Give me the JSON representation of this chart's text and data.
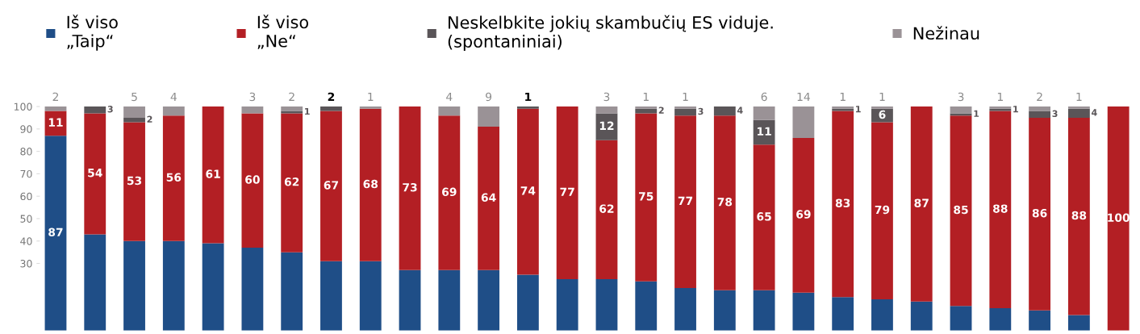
{
  "chart_data": {
    "type": "bar",
    "stacked": true,
    "categories": [
      null,
      null,
      null,
      null,
      null,
      null,
      null,
      null,
      null,
      null,
      null,
      null,
      null,
      null,
      null,
      null,
      null,
      null,
      null,
      null,
      null,
      null,
      null,
      null,
      null,
      null,
      null,
      null
    ],
    "series": [
      {
        "name": "Iš viso\n„Taip“",
        "color": "#1f4e87",
        "values": [
          87,
          43,
          40,
          40,
          39,
          37,
          35,
          31,
          31,
          27,
          27,
          27,
          25,
          23,
          23,
          22,
          19,
          18,
          18,
          17,
          15,
          14,
          13,
          11,
          10,
          9,
          7,
          0
        ],
        "value_labels": [
          "87",
          null,
          null,
          null,
          null,
          null,
          null,
          null,
          null,
          null,
          null,
          null,
          null,
          null,
          null,
          null,
          null,
          null,
          null,
          null,
          null,
          null,
          null,
          null,
          null,
          null,
          null,
          null
        ]
      },
      {
        "name": "Iš viso\n„Ne“",
        "color": "#b31f24",
        "values": [
          11,
          54,
          53,
          56,
          61,
          60,
          62,
          67,
          68,
          73,
          69,
          64,
          74,
          77,
          62,
          75,
          77,
          78,
          65,
          69,
          83,
          79,
          87,
          85,
          88,
          86,
          88,
          100
        ],
        "value_labels": [
          "11",
          "54",
          "53",
          "56",
          "61",
          "60",
          "62",
          "67",
          "68",
          "73",
          "69",
          "64",
          "74",
          "77",
          "62",
          "75",
          "77",
          "78",
          "65",
          "69",
          "83",
          "79",
          "87",
          "85",
          "88",
          "86",
          "88",
          "100"
        ]
      },
      {
        "name": "Neskelbkite jokių skambučių ES viduje.\n(spontaniniai)",
        "color": "#5a5558",
        "values": [
          0,
          3,
          2,
          0,
          0,
          0,
          1,
          2,
          0,
          0,
          0,
          0,
          1,
          0,
          12,
          2,
          3,
          4,
          11,
          0,
          1,
          6,
          0,
          1,
          1,
          3,
          4,
          0
        ],
        "value_labels": [
          null,
          "3",
          "2",
          null,
          null,
          null,
          "1",
          "2",
          null,
          null,
          null,
          null,
          "1",
          null,
          "12",
          "2",
          "3",
          "4",
          "11",
          null,
          "1",
          "6",
          null,
          "1",
          "1",
          "3",
          "4",
          null
        ]
      },
      {
        "name": "Nežinau",
        "color": "#9a9296",
        "values": [
          2,
          0,
          5,
          4,
          0,
          3,
          2,
          0,
          1,
          0,
          4,
          9,
          0,
          0,
          3,
          1,
          1,
          0,
          6,
          14,
          1,
          1,
          0,
          3,
          1,
          2,
          1,
          0
        ],
        "value_labels": [
          "2",
          null,
          "5",
          "4",
          null,
          "3",
          "2",
          null,
          "1",
          null,
          "4",
          "9",
          null,
          null,
          "3",
          "1",
          "1",
          null,
          "6",
          "14",
          "1",
          "1",
          null,
          "3",
          "1",
          "2",
          "1",
          null
        ]
      }
    ],
    "ylim": [
      0,
      100
    ],
    "yticks": [
      30,
      40,
      50,
      60,
      70,
      80,
      90,
      100
    ],
    "grid": false,
    "legend": "top"
  }
}
